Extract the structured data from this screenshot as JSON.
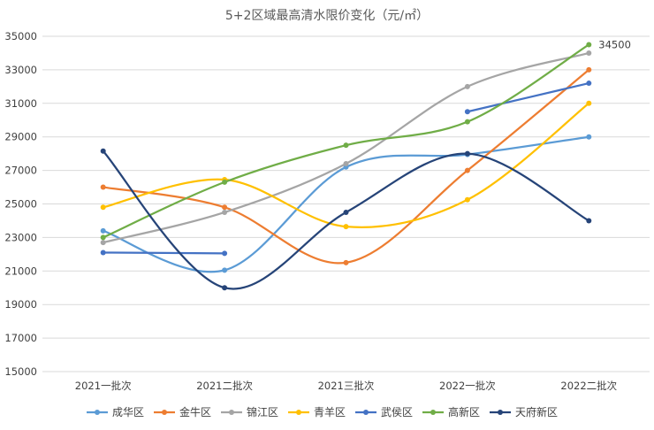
{
  "chart_data": {
    "type": "line",
    "title": "5+2区域最高清水限价变化（元/㎡）",
    "categories": [
      "2021一批次",
      "2021二批次",
      "2021三批次",
      "2022一批次",
      "2022二批次"
    ],
    "ylim": [
      15000,
      35000
    ],
    "yticks": [
      15000,
      17000,
      19000,
      21000,
      23000,
      25000,
      27000,
      29000,
      31000,
      33000,
      35000
    ],
    "smooth": true,
    "grid": "horizontal",
    "legend_position": "bottom",
    "series": [
      {
        "name": "成华区",
        "color": "#5B9BD5",
        "values": [
          23400,
          21050,
          27200,
          27950,
          29000
        ]
      },
      {
        "name": "金牛区",
        "color": "#ED7D31",
        "values": [
          26000,
          24800,
          21500,
          27000,
          33000
        ]
      },
      {
        "name": "锦江区",
        "color": "#A5A5A5",
        "values": [
          22700,
          24500,
          27400,
          32000,
          34000
        ]
      },
      {
        "name": "青羊区",
        "color": "#FFC000",
        "values": [
          24800,
          26450,
          23650,
          25250,
          31000
        ]
      },
      {
        "name": "武侯区",
        "color": "#4472C4",
        "values": [
          22100,
          22050,
          null,
          30500,
          32200
        ]
      },
      {
        "name": "高新区",
        "color": "#70AD47",
        "values": [
          23000,
          26300,
          28500,
          29900,
          34500
        ]
      },
      {
        "name": "天府新区",
        "color": "#264478",
        "values": [
          28150,
          20000,
          24500,
          28000,
          24000
        ]
      }
    ],
    "data_labels": [
      {
        "series": "高新区",
        "category_index": 4,
        "text": "34500"
      }
    ]
  }
}
